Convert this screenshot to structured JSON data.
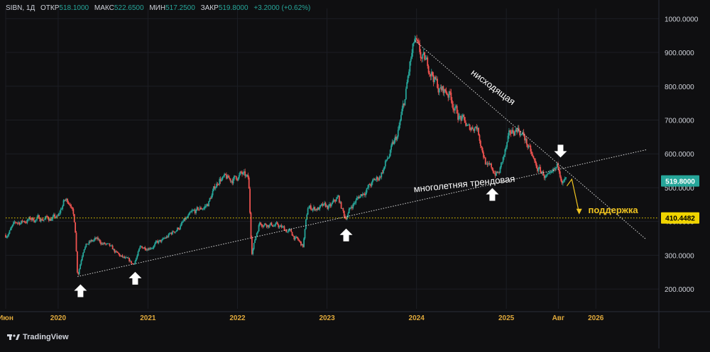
{
  "header": {
    "symbol": "SIBN, 1Д",
    "open_label": "ОТКР",
    "open": "518.1000",
    "high_label": "МАКС",
    "high": "522.6500",
    "low_label": "МИН",
    "low": "517.2500",
    "close_label": "ЗАКР",
    "close": "519.8000",
    "change": "+3.2000 (+0.62%)"
  },
  "price_badges": {
    "last": "519.8000",
    "support": "410.4482"
  },
  "footer": {
    "brand": "TradingView",
    "logo": "tradingview-logo-icon"
  },
  "colors": {
    "up": "#26a69a",
    "down": "#ef5350",
    "bg": "#0f0f11",
    "support": "#f0d400",
    "annotation": "#f0c420",
    "trend": "#d9d9d9"
  },
  "chart_data": {
    "type": "candlestick",
    "y_axis": {
      "ylim": [
        150,
        1030
      ],
      "ticks": [
        200,
        300,
        400,
        500,
        600,
        700,
        800,
        900,
        1000
      ],
      "tick_labels": [
        "200.0000",
        "300.0000",
        "400.0000",
        "500.0000",
        "600.0000",
        "700.0000",
        "800.0000",
        "900.0000",
        "1000.0000"
      ]
    },
    "x_axis": {
      "range": [
        "2019-06-01",
        "2026-09-15"
      ],
      "ticks": [
        {
          "date": "2019-06-01",
          "label": "Июн"
        },
        {
          "date": "2020-01-01",
          "label": "2020"
        },
        {
          "date": "2021-01-01",
          "label": "2021"
        },
        {
          "date": "2022-01-01",
          "label": "2022"
        },
        {
          "date": "2023-01-01",
          "label": "2023"
        },
        {
          "date": "2024-01-01",
          "label": "2024"
        },
        {
          "date": "2025-01-01",
          "label": "2025"
        },
        {
          "date": "2025-08-01",
          "label": "Авг"
        },
        {
          "date": "2026-01-01",
          "label": "2026"
        }
      ]
    },
    "price_path": [
      [
        "2019-06-01",
        360
      ],
      [
        "2019-07-15",
        395
      ],
      [
        "2019-09-01",
        405
      ],
      [
        "2019-11-01",
        410
      ],
      [
        "2020-01-01",
        410
      ],
      [
        "2020-01-25",
        460
      ],
      [
        "2020-02-20",
        460
      ],
      [
        "2020-03-10",
        390
      ],
      [
        "2020-03-20",
        240
      ],
      [
        "2020-04-15",
        330
      ],
      [
        "2020-06-01",
        345
      ],
      [
        "2020-07-15",
        330
      ],
      [
        "2020-09-01",
        300
      ],
      [
        "2020-11-01",
        272
      ],
      [
        "2020-12-01",
        320
      ],
      [
        "2021-03-01",
        340
      ],
      [
        "2021-05-01",
        380
      ],
      [
        "2021-07-01",
        420
      ],
      [
        "2021-09-01",
        450
      ],
      [
        "2021-10-20",
        530
      ],
      [
        "2021-12-01",
        520
      ],
      [
        "2022-01-15",
        540
      ],
      [
        "2022-02-15",
        520
      ],
      [
        "2022-02-28",
        310
      ],
      [
        "2022-04-01",
        400
      ],
      [
        "2022-06-01",
        390
      ],
      [
        "2022-08-01",
        370
      ],
      [
        "2022-09-25",
        325
      ],
      [
        "2022-10-15",
        440
      ],
      [
        "2022-12-01",
        440
      ],
      [
        "2023-01-15",
        440
      ],
      [
        "2023-02-15",
        470
      ],
      [
        "2023-03-15",
        410
      ],
      [
        "2023-04-15",
        450
      ],
      [
        "2023-06-01",
        490
      ],
      [
        "2023-08-01",
        530
      ],
      [
        "2023-09-15",
        600
      ],
      [
        "2023-10-15",
        650
      ],
      [
        "2023-11-15",
        760
      ],
      [
        "2023-12-05",
        860
      ],
      [
        "2023-12-25",
        930
      ],
      [
        "2024-01-15",
        880
      ],
      [
        "2024-03-01",
        850
      ],
      [
        "2024-04-01",
        790
      ],
      [
        "2024-05-15",
        780
      ],
      [
        "2024-06-15",
        720
      ],
      [
        "2024-08-01",
        670
      ],
      [
        "2024-09-01",
        690
      ],
      [
        "2024-10-15",
        560
      ],
      [
        "2024-12-01",
        540
      ],
      [
        "2025-01-15",
        650
      ],
      [
        "2025-02-15",
        680
      ],
      [
        "2025-03-15",
        650
      ],
      [
        "2025-05-01",
        560
      ],
      [
        "2025-07-01",
        520
      ],
      [
        "2025-08-01",
        560
      ],
      [
        "2025-08-20",
        525
      ],
      [
        "2025-09-01",
        519.8
      ]
    ],
    "trendlines": [
      {
        "name": "многолетняя трендовая",
        "from": [
          "2020-03-20",
          237
        ],
        "to": [
          "2026-07-25",
          612
        ]
      },
      {
        "name": "нисходящая",
        "from": [
          "2023-12-25",
          935
        ],
        "to": [
          "2026-07-25",
          347
        ]
      }
    ],
    "support_line": {
      "value": 410.4482
    },
    "annotations": [
      {
        "text": "многолетняя трендовая",
        "date": "2024-07-15",
        "price": 502,
        "angle": -6
      },
      {
        "text": "нисходящая",
        "date": "2024-11-01",
        "price": 790,
        "angle": 37
      },
      {
        "text": "поддержка",
        "date": "2025-12-01",
        "price": 425
      }
    ],
    "arrows_up": [
      {
        "date": "2020-04-01",
        "price": 195
      },
      {
        "date": "2020-11-10",
        "price": 232
      },
      {
        "date": "2023-03-20",
        "price": 360
      },
      {
        "date": "2024-11-05",
        "price": 480
      }
    ],
    "arrows_down": [
      {
        "date": "2025-08-10",
        "price": 608
      }
    ],
    "forecast_arrow": {
      "points": [
        [
          "2025-09-05",
          505
        ],
        [
          "2025-09-25",
          525
        ],
        [
          "2025-10-25",
          425
        ]
      ]
    }
  }
}
